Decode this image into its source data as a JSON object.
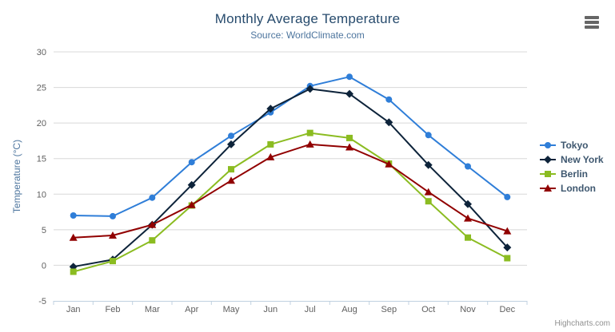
{
  "chart_data": {
    "type": "line",
    "title": "Monthly Average Temperature",
    "subtitle": "Source: WorldClimate.com",
    "categories": [
      "Jan",
      "Feb",
      "Mar",
      "Apr",
      "May",
      "Jun",
      "Jul",
      "Aug",
      "Sep",
      "Oct",
      "Nov",
      "Dec"
    ],
    "xlabel": "",
    "ylabel": "Temperature (°C)",
    "ylim": [
      -5,
      30
    ],
    "ytick_step": 5,
    "grid": true,
    "legend_position": "right",
    "series": [
      {
        "name": "Tokyo",
        "slug": "tokyo",
        "color": "#2f7ed8",
        "marker": "circle",
        "values": [
          7.0,
          6.9,
          9.5,
          14.5,
          18.2,
          21.5,
          25.2,
          26.5,
          23.3,
          18.3,
          13.9,
          9.6
        ]
      },
      {
        "name": "New York",
        "slug": "new-york",
        "color": "#0d233a",
        "marker": "diamond",
        "values": [
          -0.2,
          0.8,
          5.7,
          11.3,
          17.0,
          22.0,
          24.8,
          24.1,
          20.1,
          14.1,
          8.6,
          2.5
        ]
      },
      {
        "name": "Berlin",
        "slug": "berlin",
        "color": "#8bbc21",
        "marker": "square",
        "values": [
          -0.9,
          0.6,
          3.5,
          8.4,
          13.5,
          17.0,
          18.6,
          17.9,
          14.3,
          9.0,
          3.9,
          1.0
        ]
      },
      {
        "name": "London",
        "slug": "london",
        "color": "#910000",
        "marker": "triangle",
        "values": [
          3.9,
          4.2,
          5.7,
          8.5,
          11.9,
          15.2,
          17.0,
          16.6,
          14.2,
          10.3,
          6.6,
          4.8
        ]
      }
    ]
  },
  "credits": {
    "label": "Highcharts.com"
  },
  "menu": {
    "icon": "hamburger-icon",
    "bars": 3
  },
  "colors": {
    "title": "#274b6d",
    "subtitle": "#4d759e",
    "y_axis_title": "#4d759e",
    "axis_label": "#606060",
    "grid_line": "#d8d8d8",
    "axis_line": "#c0d0e0",
    "legend_text": "#3e576f",
    "credits": "#909090",
    "menu_icon": "#666666",
    "background": "#ffffff"
  }
}
